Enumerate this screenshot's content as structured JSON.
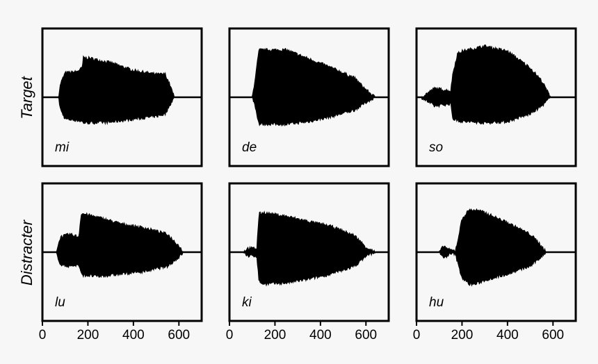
{
  "chart_data": {
    "type": "area",
    "x_ticks": [
      0,
      200,
      400,
      600
    ],
    "xlim": [
      0,
      700
    ],
    "ylim": [
      -1,
      1
    ],
    "rows": [
      {
        "label": "Target"
      },
      {
        "label": "Distracter"
      }
    ],
    "panels": [
      {
        "row": 0,
        "label": "mi",
        "envelope": {
          "x": [
            0,
            70,
            80,
            100,
            150,
            175,
            180,
            210,
            300,
            400,
            500,
            540,
            560,
            580,
            700
          ],
          "upper": [
            0,
            0,
            0.22,
            0.38,
            0.4,
            0.46,
            0.62,
            0.61,
            0.54,
            0.42,
            0.36,
            0.36,
            0.2,
            0,
            0
          ],
          "lower": [
            0,
            0,
            -0.2,
            -0.34,
            -0.36,
            -0.38,
            -0.4,
            -0.4,
            -0.39,
            -0.34,
            -0.3,
            -0.26,
            -0.12,
            0,
            0
          ]
        }
      },
      {
        "row": 0,
        "label": "de",
        "envelope": {
          "x": [
            0,
            100,
            110,
            130,
            250,
            350,
            450,
            550,
            600,
            640,
            700
          ],
          "upper": [
            0,
            0,
            0.22,
            0.74,
            0.74,
            0.6,
            0.46,
            0.3,
            0.12,
            0,
            0
          ],
          "lower": [
            0,
            0,
            -0.1,
            -0.42,
            -0.42,
            -0.38,
            -0.3,
            -0.2,
            -0.08,
            0,
            0
          ]
        }
      },
      {
        "row": 0,
        "label": "so",
        "envelope": {
          "x": [
            0,
            20,
            80,
            150,
            160,
            180,
            200,
            300,
            400,
            500,
            550,
            590,
            700
          ],
          "upper": [
            0,
            0,
            0.14,
            0.1,
            0.38,
            0.68,
            0.72,
            0.8,
            0.72,
            0.46,
            0.26,
            0,
            0
          ],
          "lower": [
            0,
            0,
            -0.14,
            -0.1,
            -0.34,
            -0.36,
            -0.38,
            -0.4,
            -0.38,
            -0.26,
            -0.14,
            0,
            0
          ]
        }
      },
      {
        "row": 1,
        "label": "lu",
        "envelope": {
          "x": [
            0,
            60,
            80,
            120,
            160,
            170,
            180,
            250,
            350,
            450,
            550,
            600,
            620,
            700
          ],
          "upper": [
            0,
            0,
            0.24,
            0.28,
            0.24,
            0.6,
            0.6,
            0.54,
            0.44,
            0.38,
            0.28,
            0.1,
            0,
            0
          ],
          "lower": [
            0,
            0,
            -0.2,
            -0.22,
            -0.2,
            -0.34,
            -0.36,
            -0.38,
            -0.34,
            -0.3,
            -0.22,
            -0.08,
            0,
            0
          ]
        }
      },
      {
        "row": 1,
        "label": "ki",
        "envelope": {
          "x": [
            0,
            60,
            80,
            100,
            120,
            130,
            150,
            250,
            350,
            450,
            550,
            600,
            640,
            700
          ],
          "upper": [
            0,
            0,
            0.06,
            0.06,
            0.06,
            0.6,
            0.62,
            0.56,
            0.48,
            0.4,
            0.26,
            0.08,
            0,
            0
          ],
          "lower": [
            0,
            0,
            -0.06,
            -0.06,
            -0.06,
            -0.46,
            -0.5,
            -0.48,
            -0.42,
            -0.34,
            -0.22,
            -0.06,
            0,
            0
          ]
        }
      },
      {
        "row": 1,
        "label": "hu",
        "envelope": {
          "x": [
            0,
            100,
            120,
            140,
            170,
            180,
            200,
            230,
            260,
            300,
            400,
            500,
            540,
            570,
            700
          ],
          "upper": [
            0,
            0,
            0.1,
            0.04,
            0.02,
            0.16,
            0.52,
            0.66,
            0.66,
            0.62,
            0.46,
            0.28,
            0.14,
            0,
            0
          ],
          "lower": [
            0,
            0,
            -0.1,
            -0.04,
            -0.02,
            -0.16,
            -0.4,
            -0.5,
            -0.5,
            -0.44,
            -0.34,
            -0.22,
            -0.1,
            0,
            0
          ]
        }
      }
    ]
  }
}
